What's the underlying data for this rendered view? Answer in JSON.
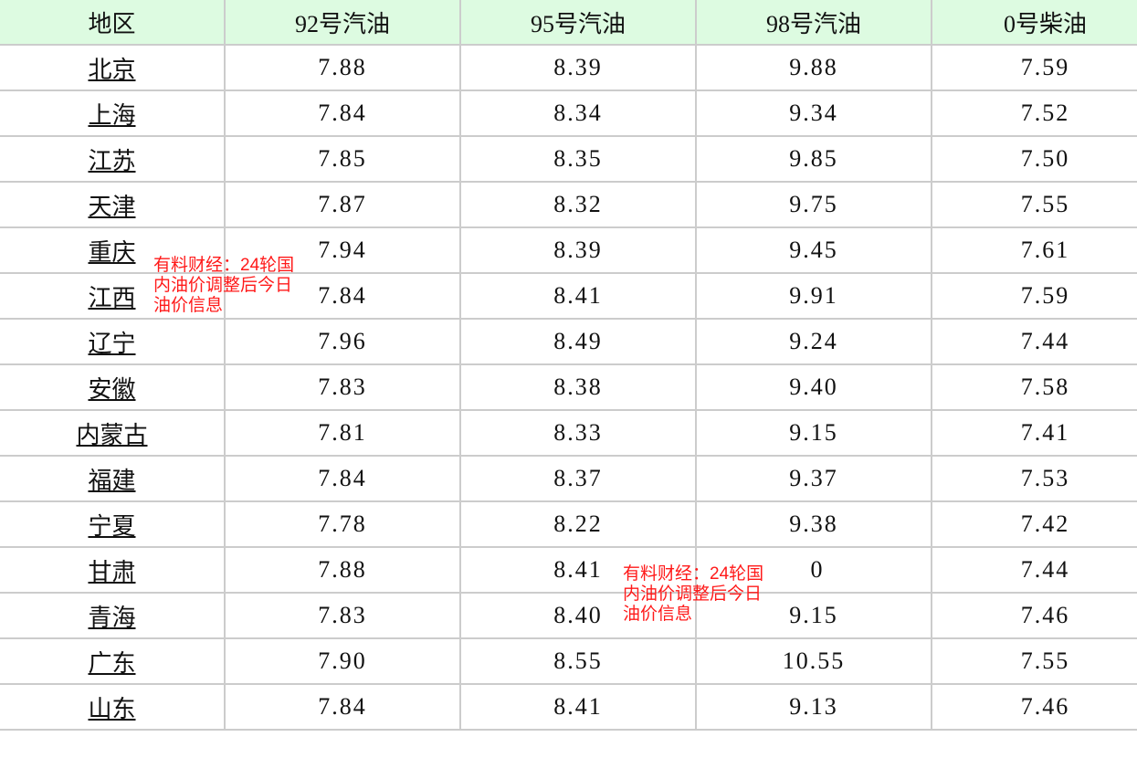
{
  "headers": [
    "地区",
    "92号汽油",
    "95号汽油",
    "98号汽油",
    "0号柴油"
  ],
  "rows": [
    {
      "region": "北京",
      "p92": "7.88",
      "p95": "8.39",
      "p98": "9.88",
      "p0": "7.59"
    },
    {
      "region": "上海",
      "p92": "7.84",
      "p95": "8.34",
      "p98": "9.34",
      "p0": "7.52"
    },
    {
      "region": "江苏",
      "p92": "7.85",
      "p95": "8.35",
      "p98": "9.85",
      "p0": "7.50"
    },
    {
      "region": "天津",
      "p92": "7.87",
      "p95": "8.32",
      "p98": "9.75",
      "p0": "7.55"
    },
    {
      "region": "重庆",
      "p92": "7.94",
      "p95": "8.39",
      "p98": "9.45",
      "p0": "7.61"
    },
    {
      "region": "江西",
      "p92": "7.84",
      "p95": "8.41",
      "p98": "9.91",
      "p0": "7.59"
    },
    {
      "region": "辽宁",
      "p92": "7.96",
      "p95": "8.49",
      "p98": "9.24",
      "p0": "7.44"
    },
    {
      "region": "安徽",
      "p92": "7.83",
      "p95": "8.38",
      "p98": "9.40",
      "p0": "7.58"
    },
    {
      "region": "内蒙古",
      "p92": "7.81",
      "p95": "8.33",
      "p98": "9.15",
      "p0": "7.41"
    },
    {
      "region": "福建",
      "p92": "7.84",
      "p95": "8.37",
      "p98": "9.37",
      "p0": "7.53"
    },
    {
      "region": "宁夏",
      "p92": "7.78",
      "p95": "8.22",
      "p98": "9.38",
      "p0": "7.42"
    },
    {
      "region": "甘肃",
      "p92": "7.88",
      "p95": "8.41",
      "p98": "0",
      "p0": "7.44"
    },
    {
      "region": "青海",
      "p92": "7.83",
      "p95": "8.40",
      "p98": "9.15",
      "p0": "7.46"
    },
    {
      "region": "广东",
      "p92": "7.90",
      "p95": "8.55",
      "p98": "10.55",
      "p0": "7.55"
    },
    {
      "region": "山东",
      "p92": "7.84",
      "p95": "8.41",
      "p98": "9.13",
      "p0": "7.46"
    }
  ],
  "watermarks": [
    "有料财经：24轮国内油价调整后今日油价信息",
    "有料财经：24轮国内油价调整后今日油价信息"
  ],
  "colors": {
    "header_bg": "#ddfbe1",
    "border": "#cccccc",
    "watermark": "#ff1a1a"
  }
}
